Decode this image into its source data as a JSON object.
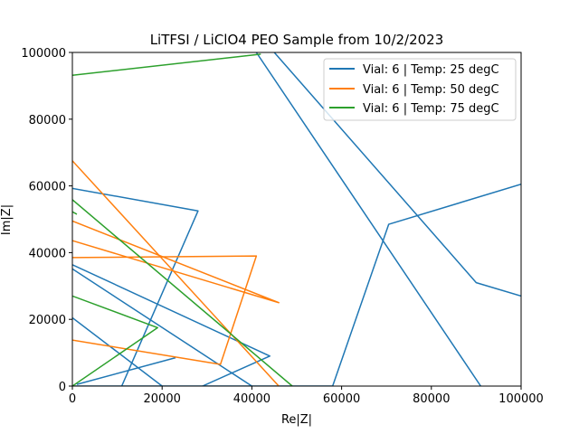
{
  "chart_data": {
    "type": "line",
    "title": "LiTFSI / LiClO4 PEO Sample from 10/2/2023",
    "xlabel": "Re|Z|",
    "ylabel": "Im|Z|",
    "xlim": [
      0,
      100000
    ],
    "ylim": [
      0,
      100000
    ],
    "x_ticks": [
      0,
      20000,
      40000,
      60000,
      80000,
      100000
    ],
    "y_ticks": [
      0,
      20000,
      40000,
      60000,
      80000,
      100000
    ],
    "x_tick_labels": [
      "0",
      "20000",
      "40000",
      "60000",
      "80000",
      "100000"
    ],
    "y_tick_labels": [
      "0",
      "20000",
      "40000",
      "60000",
      "80000",
      "100000"
    ],
    "grid": false,
    "legend_position": "top-right",
    "series": [
      {
        "name": "Vial: 6 | Temp: 25 degC",
        "color": "#1f77b4",
        "points": [
          [
            100000,
            60500
          ],
          [
            70500,
            48500
          ],
          [
            58000,
            0
          ],
          [
            -2000,
            0
          ]
        ]
      },
      {
        "name": "Vial: 6 | Temp: 25 degC",
        "color": "#1f77b4",
        "points": [
          [
            100000,
            27000
          ],
          [
            90000,
            31000
          ],
          [
            45000,
            100000
          ]
        ]
      },
      {
        "name": "Vial: 6 | Temp: 25 degC",
        "color": "#1f77b4",
        "points": [
          [
            -1000,
            59500
          ],
          [
            28000,
            52500
          ],
          [
            11000,
            0
          ]
        ]
      },
      {
        "name": "Vial: 6 | Temp: 25 degC",
        "color": "#1f77b4",
        "points": [
          [
            -1000,
            37000
          ],
          [
            44000,
            9000
          ],
          [
            29000,
            0
          ]
        ]
      },
      {
        "name": "Vial: 6 | Temp: 25 degC",
        "color": "#1f77b4",
        "points": [
          [
            -1000,
            36000
          ],
          [
            40000,
            0
          ]
        ]
      },
      {
        "name": "Vial: 6 | Temp: 25 degC",
        "color": "#1f77b4",
        "points": [
          [
            -1000,
            21500
          ],
          [
            20000,
            0
          ]
        ]
      },
      {
        "name": "Vial: 6 | Temp: 25 degC",
        "color": "#1f77b4",
        "points": [
          [
            1000,
            500
          ],
          [
            23000,
            8500
          ]
        ]
      },
      {
        "name": "Vial: 6 | Temp: 25 degC",
        "color": "#1f77b4",
        "points": [
          [
            41000,
            100000
          ],
          [
            91000,
            0
          ]
        ]
      },
      {
        "name": "Vial: 6 | Temp: 50 degC",
        "color": "#ff7f0e",
        "points": [
          [
            -1000,
            69000
          ],
          [
            46000,
            0
          ]
        ]
      },
      {
        "name": "Vial: 6 | Temp: 50 degC",
        "color": "#ff7f0e",
        "points": [
          [
            -1000,
            50000
          ],
          [
            46000,
            25000
          ],
          [
            -1000,
            44000
          ]
        ]
      },
      {
        "name": "Vial: 6 | Temp: 50 degC",
        "color": "#ff7f0e",
        "points": [
          [
            -1000,
            38500
          ],
          [
            41000,
            39000
          ],
          [
            33000,
            6500
          ],
          [
            -1000,
            14000
          ]
        ]
      },
      {
        "name": "Vial: 6 | Temp: 75 degC",
        "color": "#2ca02c",
        "points": [
          [
            -1000,
            93000
          ],
          [
            42000,
            99500
          ]
        ]
      },
      {
        "name": "Vial: 6 | Temp: 75 degC",
        "color": "#2ca02c",
        "points": [
          [
            -1000,
            57000
          ],
          [
            49000,
            0
          ]
        ]
      },
      {
        "name": "Vial: 6 | Temp: 75 degC",
        "color": "#2ca02c",
        "points": [
          [
            -1000,
            27500
          ],
          [
            19000,
            17500
          ],
          [
            0,
            0
          ]
        ]
      },
      {
        "name": "Vial: 6 | Temp: 75 degC",
        "color": "#2ca02c",
        "points": [
          [
            -1000,
            53000
          ],
          [
            1000,
            51500
          ]
        ]
      }
    ],
    "legend": [
      {
        "label": "Vial: 6 | Temp: 25 degC",
        "color": "#1f77b4"
      },
      {
        "label": "Vial: 6 | Temp: 50 degC",
        "color": "#ff7f0e"
      },
      {
        "label": "Vial: 6 | Temp: 75 degC",
        "color": "#2ca02c"
      }
    ]
  }
}
